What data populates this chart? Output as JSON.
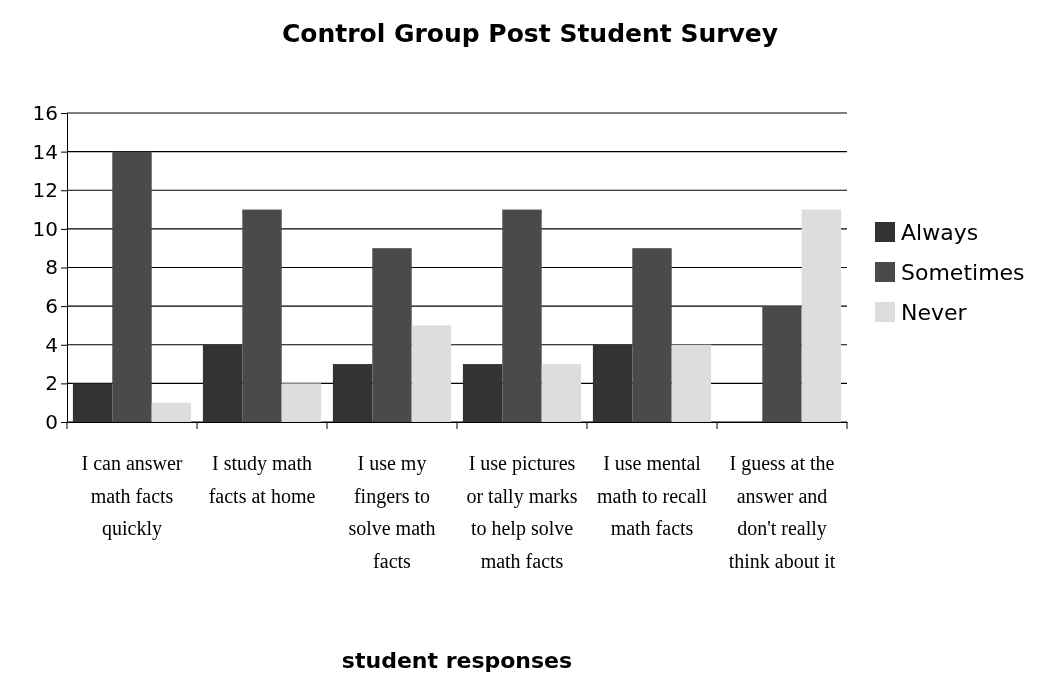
{
  "chart_data": {
    "type": "bar",
    "title": "Control Group Post Student Survey",
    "xlabel": "student responses",
    "categories": [
      "I can answer math facts quickly",
      "I study math facts at home",
      "I use my fingers to solve math facts",
      "I use pictures or tally marks to help solve math facts",
      "I use mental math to recall math facts",
      "I guess at the answer and don't really think about it"
    ],
    "series": [
      {
        "name": "Always",
        "color": "#333333",
        "values": [
          2,
          4,
          3,
          3,
          4,
          0
        ]
      },
      {
        "name": "Sometimes",
        "color": "#4a4a4a",
        "values": [
          14,
          11,
          9,
          11,
          9,
          6
        ]
      },
      {
        "name": "Never",
        "color": "#dddddd",
        "values": [
          1,
          2,
          5,
          3,
          4,
          11
        ]
      }
    ],
    "ylim": [
      0,
      16
    ],
    "yticks": [
      0,
      2,
      4,
      6,
      8,
      10,
      12,
      14,
      16
    ],
    "grid": "y",
    "legend": "right"
  }
}
